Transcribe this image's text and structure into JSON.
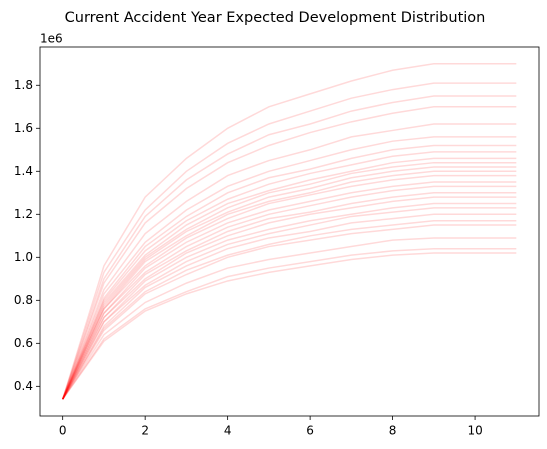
{
  "chart_data": {
    "type": "line",
    "title": "Current Accident Year Expected Development Distribution",
    "y_offset_label": "1e6",
    "x": [
      0,
      1,
      2,
      3,
      4,
      5,
      6,
      7,
      8,
      9,
      10,
      11
    ],
    "xlim": [
      -0.55,
      11.55
    ],
    "xticks": [
      0,
      2,
      4,
      6,
      8,
      10
    ],
    "ylim": [
      0.262,
      1.978
    ],
    "yticks": [
      0.4,
      0.6,
      0.8,
      {
        "value": 1,
        "label": "1.0"
      },
      1.2,
      1.4,
      1.6,
      1.8
    ],
    "line_alpha": 0.15,
    "grid": false,
    "series": [
      {
        "color": "#ff0000",
        "values": [
          0.34,
          0.61,
          0.75,
          0.83,
          0.89,
          0.93,
          0.96,
          0.99,
          1.01,
          1.02,
          1.02,
          1.02
        ]
      },
      {
        "color": "#ff0000",
        "values": [
          0.34,
          0.62,
          0.76,
          0.84,
          0.91,
          0.95,
          0.98,
          1.01,
          1.03,
          1.04,
          1.04,
          1.04
        ]
      },
      {
        "color": "#ff0000",
        "values": [
          0.34,
          0.64,
          0.79,
          0.88,
          0.95,
          0.99,
          1.02,
          1.05,
          1.08,
          1.09,
          1.09,
          1.09
        ]
      },
      {
        "color": "#ff0000",
        "values": [
          0.34,
          0.66,
          0.83,
          0.92,
          1.0,
          1.05,
          1.08,
          1.11,
          1.13,
          1.15,
          1.15,
          1.15
        ]
      },
      {
        "color": "#ff0000",
        "values": [
          0.34,
          0.67,
          0.84,
          0.94,
          1.01,
          1.06,
          1.1,
          1.13,
          1.15,
          1.17,
          1.17,
          1.17
        ]
      },
      {
        "color": "#ff0000",
        "values": [
          0.34,
          0.68,
          0.86,
          0.96,
          1.04,
          1.09,
          1.12,
          1.16,
          1.18,
          1.2,
          1.2,
          1.2
        ]
      },
      {
        "color": "#ff0000",
        "values": [
          0.34,
          0.7,
          0.87,
          0.98,
          1.06,
          1.11,
          1.15,
          1.19,
          1.21,
          1.23,
          1.23,
          1.23
        ]
      },
      {
        "color": "#ff0000",
        "values": [
          0.34,
          0.7,
          0.89,
          1.0,
          1.08,
          1.13,
          1.17,
          1.2,
          1.23,
          1.25,
          1.25,
          1.25
        ]
      },
      {
        "color": "#ff0000",
        "values": [
          0.34,
          0.72,
          0.9,
          1.02,
          1.1,
          1.16,
          1.2,
          1.23,
          1.26,
          1.28,
          1.28,
          1.28
        ]
      },
      {
        "color": "#ff0000",
        "values": [
          0.34,
          0.72,
          0.92,
          1.03,
          1.12,
          1.18,
          1.21,
          1.25,
          1.28,
          1.3,
          1.3,
          1.3
        ]
      },
      {
        "color": "#ff0000",
        "values": [
          0.34,
          0.74,
          0.93,
          1.05,
          1.14,
          1.2,
          1.24,
          1.28,
          1.31,
          1.33,
          1.33,
          1.33
        ]
      },
      {
        "color": "#ff0000",
        "values": [
          0.34,
          0.74,
          0.95,
          1.07,
          1.16,
          1.22,
          1.26,
          1.3,
          1.33,
          1.35,
          1.35,
          1.35
        ]
      },
      {
        "color": "#ff0000",
        "values": [
          0.34,
          0.76,
          0.96,
          1.09,
          1.18,
          1.25,
          1.29,
          1.33,
          1.36,
          1.38,
          1.38,
          1.38
        ]
      },
      {
        "color": "#ff0000",
        "values": [
          0.34,
          0.76,
          0.98,
          1.1,
          1.2,
          1.26,
          1.3,
          1.35,
          1.38,
          1.4,
          1.4,
          1.4
        ]
      },
      {
        "color": "#ff0000",
        "values": [
          0.34,
          0.77,
          0.99,
          1.12,
          1.21,
          1.28,
          1.32,
          1.37,
          1.4,
          1.42,
          1.42,
          1.42
        ]
      },
      {
        "color": "#ff0000",
        "values": [
          0.34,
          0.78,
          1.0,
          1.13,
          1.23,
          1.3,
          1.34,
          1.39,
          1.42,
          1.44,
          1.44,
          1.44
        ]
      },
      {
        "color": "#ff0000",
        "values": [
          0.34,
          0.79,
          1.01,
          1.15,
          1.25,
          1.31,
          1.36,
          1.4,
          1.44,
          1.46,
          1.46,
          1.46
        ]
      },
      {
        "color": "#ff0000",
        "values": [
          0.34,
          0.8,
          1.03,
          1.17,
          1.27,
          1.34,
          1.39,
          1.43,
          1.47,
          1.49,
          1.49,
          1.49
        ]
      },
      {
        "color": "#ff0000",
        "values": [
          0.34,
          0.81,
          1.05,
          1.19,
          1.3,
          1.37,
          1.41,
          1.46,
          1.5,
          1.52,
          1.52,
          1.52
        ]
      },
      {
        "color": "#ff0000",
        "values": [
          0.34,
          0.83,
          1.07,
          1.22,
          1.33,
          1.4,
          1.45,
          1.5,
          1.54,
          1.56,
          1.56,
          1.56
        ]
      },
      {
        "color": "#ff0000",
        "values": [
          0.34,
          0.85,
          1.11,
          1.26,
          1.38,
          1.45,
          1.5,
          1.56,
          1.59,
          1.62,
          1.62,
          1.62
        ]
      },
      {
        "color": "#ff0000",
        "values": [
          0.34,
          0.88,
          1.16,
          1.32,
          1.44,
          1.52,
          1.58,
          1.63,
          1.67,
          1.7,
          1.7,
          1.7
        ]
      },
      {
        "color": "#ff0000",
        "values": [
          0.34,
          0.9,
          1.19,
          1.36,
          1.48,
          1.57,
          1.62,
          1.68,
          1.72,
          1.75,
          1.75,
          1.75
        ]
      },
      {
        "color": "#ff0000",
        "values": [
          0.34,
          0.93,
          1.22,
          1.4,
          1.53,
          1.62,
          1.68,
          1.74,
          1.78,
          1.81,
          1.81,
          1.81
        ]
      },
      {
        "color": "#ff0000",
        "values": [
          0.34,
          0.96,
          1.28,
          1.46,
          1.6,
          1.7,
          1.76,
          1.82,
          1.87,
          1.9,
          1.9,
          1.9
        ]
      }
    ]
  }
}
